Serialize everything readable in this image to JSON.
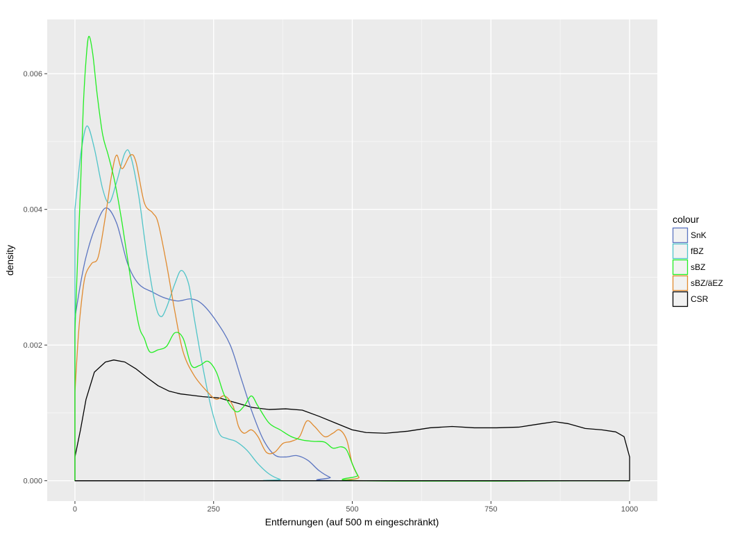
{
  "chart_data": {
    "type": "line",
    "title": "",
    "xlabel": "Entfernungen (auf 500 m eingeschränkt)",
    "ylabel": "density",
    "xlim": [
      -50,
      1050
    ],
    "ylim": [
      -0.0003,
      0.0068
    ],
    "x_ticks": [
      0,
      250,
      500,
      750,
      1000
    ],
    "x_tick_labels": [
      "0",
      "250",
      "500",
      "750",
      "1000"
    ],
    "y_ticks": [
      0.0,
      0.002,
      0.004,
      0.006
    ],
    "y_tick_labels": [
      "0.000",
      "0.002",
      "0.004",
      "0.006"
    ],
    "grid": true,
    "legend": {
      "title": "colour",
      "position": "right"
    },
    "series": [
      {
        "name": "SnK",
        "color": "#5a74c0",
        "points": [
          [
            0,
            0.0024
          ],
          [
            10,
            0.0029
          ],
          [
            20,
            0.0033
          ],
          [
            35,
            0.0037
          ],
          [
            55,
            0.00402
          ],
          [
            75,
            0.0038
          ],
          [
            95,
            0.0032
          ],
          [
            115,
            0.0029
          ],
          [
            140,
            0.00278
          ],
          [
            160,
            0.0027
          ],
          [
            185,
            0.00265
          ],
          [
            210,
            0.00268
          ],
          [
            230,
            0.0026
          ],
          [
            255,
            0.00235
          ],
          [
            280,
            0.002
          ],
          [
            300,
            0.0015
          ],
          [
            320,
            0.001
          ],
          [
            340,
            0.0006
          ],
          [
            360,
            0.00038
          ],
          [
            380,
            0.00035
          ],
          [
            400,
            0.00037
          ],
          [
            420,
            0.0003
          ],
          [
            440,
            0.00015
          ],
          [
            460,
            5e-05
          ],
          [
            480,
            0.0
          ],
          [
            1000,
            0.0
          ]
        ]
      },
      {
        "name": "fBZ",
        "color": "#4fc4c8",
        "points": [
          [
            0,
            0.004
          ],
          [
            5,
            0.0044
          ],
          [
            12,
            0.0049
          ],
          [
            22,
            0.00523
          ],
          [
            35,
            0.0049
          ],
          [
            50,
            0.0043
          ],
          [
            62,
            0.0041
          ],
          [
            75,
            0.0044
          ],
          [
            90,
            0.00483
          ],
          [
            100,
            0.0048
          ],
          [
            115,
            0.0042
          ],
          [
            130,
            0.0033
          ],
          [
            145,
            0.0026
          ],
          [
            155,
            0.00242
          ],
          [
            165,
            0.00255
          ],
          [
            180,
            0.0029
          ],
          [
            192,
            0.0031
          ],
          [
            205,
            0.0029
          ],
          [
            215,
            0.0024
          ],
          [
            230,
            0.0017
          ],
          [
            245,
            0.0011
          ],
          [
            260,
            0.0007
          ],
          [
            275,
            0.00062
          ],
          [
            290,
            0.00058
          ],
          [
            310,
            0.00045
          ],
          [
            330,
            0.00025
          ],
          [
            350,
            0.0001
          ],
          [
            370,
            2e-05
          ],
          [
            390,
            0.0
          ],
          [
            1000,
            0.0
          ]
        ]
      },
      {
        "name": "sBZ",
        "color": "#22ee22",
        "points": [
          [
            0,
            0.0022
          ],
          [
            5,
            0.0033
          ],
          [
            10,
            0.0043
          ],
          [
            15,
            0.0055
          ],
          [
            20,
            0.0062
          ],
          [
            25,
            0.00655
          ],
          [
            32,
            0.0063
          ],
          [
            40,
            0.0057
          ],
          [
            50,
            0.0051
          ],
          [
            60,
            0.0048
          ],
          [
            72,
            0.0044
          ],
          [
            85,
            0.0038
          ],
          [
            100,
            0.003
          ],
          [
            115,
            0.0023
          ],
          [
            125,
            0.0021
          ],
          [
            135,
            0.0019
          ],
          [
            150,
            0.00193
          ],
          [
            165,
            0.00198
          ],
          [
            180,
            0.00218
          ],
          [
            195,
            0.0021
          ],
          [
            210,
            0.0017
          ],
          [
            225,
            0.0017
          ],
          [
            240,
            0.00176
          ],
          [
            255,
            0.0016
          ],
          [
            270,
            0.00125
          ],
          [
            290,
            0.00102
          ],
          [
            305,
            0.0011
          ],
          [
            318,
            0.00125
          ],
          [
            330,
            0.0011
          ],
          [
            350,
            0.00085
          ],
          [
            370,
            0.00075
          ],
          [
            390,
            0.00065
          ],
          [
            410,
            0.0006
          ],
          [
            430,
            0.00058
          ],
          [
            450,
            0.00057
          ],
          [
            465,
            0.00048
          ],
          [
            480,
            0.0005
          ],
          [
            490,
            0.00045
          ],
          [
            500,
            0.00025
          ],
          [
            510,
            8e-05
          ],
          [
            520,
            0.0
          ],
          [
            1000,
            0.0
          ]
        ]
      },
      {
        "name": "sBZ/äEZ",
        "color": "#e08a2e",
        "points": [
          [
            0,
            0.0013
          ],
          [
            5,
            0.002
          ],
          [
            10,
            0.0025
          ],
          [
            18,
            0.003
          ],
          [
            30,
            0.0032
          ],
          [
            42,
            0.0033
          ],
          [
            55,
            0.0039
          ],
          [
            66,
            0.0045
          ],
          [
            75,
            0.0048
          ],
          [
            85,
            0.0046
          ],
          [
            100,
            0.0048
          ],
          [
            110,
            0.0047
          ],
          [
            125,
            0.0041
          ],
          [
            140,
            0.00395
          ],
          [
            150,
            0.0038
          ],
          [
            165,
            0.0032
          ],
          [
            180,
            0.0025
          ],
          [
            195,
            0.0019
          ],
          [
            215,
            0.00155
          ],
          [
            240,
            0.0013
          ],
          [
            255,
            0.0012
          ],
          [
            270,
            0.00125
          ],
          [
            285,
            0.0011
          ],
          [
            295,
            0.0008
          ],
          [
            305,
            0.0007
          ],
          [
            318,
            0.00075
          ],
          [
            330,
            0.00065
          ],
          [
            345,
            0.00042
          ],
          [
            360,
            0.00042
          ],
          [
            375,
            0.00055
          ],
          [
            390,
            0.00058
          ],
          [
            405,
            0.00065
          ],
          [
            418,
            0.00088
          ],
          [
            432,
            0.0008
          ],
          [
            450,
            0.00065
          ],
          [
            465,
            0.0007
          ],
          [
            477,
            0.00075
          ],
          [
            490,
            0.0006
          ],
          [
            500,
            0.00025
          ],
          [
            512,
            5e-05
          ],
          [
            520,
            0.0
          ],
          [
            1000,
            0.0
          ]
        ]
      },
      {
        "name": "CSR",
        "color": "#000000",
        "points": [
          [
            0,
            0.00035
          ],
          [
            10,
            0.00075
          ],
          [
            20,
            0.0012
          ],
          [
            35,
            0.0016
          ],
          [
            55,
            0.00175
          ],
          [
            70,
            0.00178
          ],
          [
            90,
            0.00175
          ],
          [
            110,
            0.00165
          ],
          [
            130,
            0.00152
          ],
          [
            150,
            0.0014
          ],
          [
            170,
            0.00132
          ],
          [
            190,
            0.00128
          ],
          [
            210,
            0.00126
          ],
          [
            230,
            0.00124
          ],
          [
            260,
            0.00122
          ],
          [
            290,
            0.00115
          ],
          [
            320,
            0.00108
          ],
          [
            350,
            0.00105
          ],
          [
            380,
            0.00106
          ],
          [
            410,
            0.00104
          ],
          [
            440,
            0.00095
          ],
          [
            470,
            0.00085
          ],
          [
            500,
            0.00075
          ],
          [
            525,
            0.00071
          ],
          [
            560,
            0.0007
          ],
          [
            600,
            0.00073
          ],
          [
            640,
            0.00078
          ],
          [
            680,
            0.0008
          ],
          [
            720,
            0.00078
          ],
          [
            760,
            0.00078
          ],
          [
            800,
            0.00079
          ],
          [
            840,
            0.00084
          ],
          [
            865,
            0.00087
          ],
          [
            890,
            0.00084
          ],
          [
            920,
            0.00077
          ],
          [
            950,
            0.00075
          ],
          [
            975,
            0.00072
          ],
          [
            990,
            0.00065
          ],
          [
            1000,
            0.00035
          ],
          [
            1000,
            0.0
          ],
          [
            0,
            0.0
          ]
        ]
      }
    ]
  }
}
